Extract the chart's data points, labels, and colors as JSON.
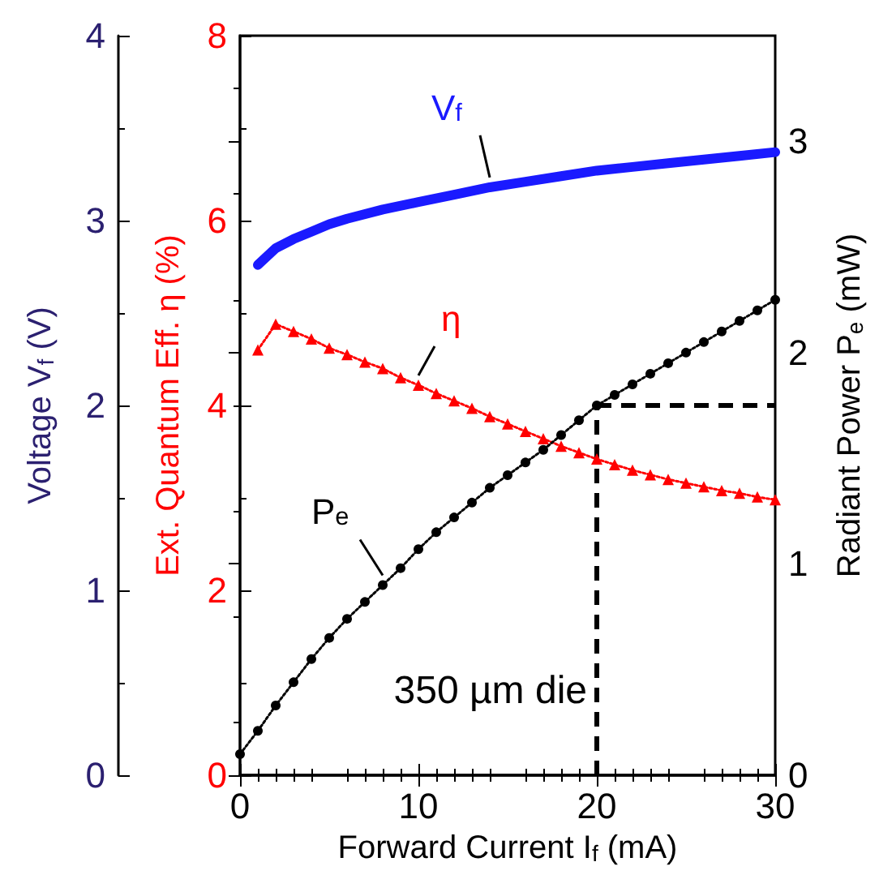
{
  "chart_data": {
    "type": "line",
    "xlabel": "Forward Current I$_{f}$ (mA)",
    "ylabel": "Ext. Quantum Eff. η (%)",
    "y2label": "Radiant Power P$_{e}$ (mW)",
    "y3label": "Voltage V$_{f}$ (V)",
    "xlim": [
      0,
      30
    ],
    "xticks": [
      0,
      10,
      20,
      30
    ],
    "ylim": [
      0,
      8
    ],
    "yticks": [
      0,
      2,
      4,
      6,
      8
    ],
    "y2lim": [
      0,
      3.5
    ],
    "y2ticks": [
      0,
      1,
      2,
      3
    ],
    "y3lim": [
      0,
      4
    ],
    "y3ticks": [
      0,
      1,
      2,
      3,
      4
    ],
    "grid": false,
    "series": [
      {
        "name": "V$_{f}$",
        "axis": "y3",
        "color": "#1a1aff",
        "marker": "none",
        "line_style": "solid",
        "x": [
          1,
          2,
          3,
          4,
          5,
          6,
          8,
          10,
          12,
          14,
          16,
          18,
          20,
          22,
          24,
          26,
          28,
          30
        ],
        "values": [
          2.76,
          2.85,
          2.9,
          2.94,
          2.98,
          3.01,
          3.06,
          3.1,
          3.14,
          3.18,
          3.21,
          3.24,
          3.27,
          3.29,
          3.31,
          3.33,
          3.35,
          3.37
        ]
      },
      {
        "name": "η",
        "color": "#ff0000",
        "marker": "triangle",
        "line_style": "dotted",
        "x": [
          1,
          2,
          3,
          4,
          5,
          6,
          7,
          8,
          9,
          10,
          11,
          12,
          13,
          14,
          15,
          16,
          17,
          18,
          19,
          20,
          21,
          22,
          23,
          24,
          25,
          26,
          27,
          28,
          29,
          30
        ],
        "values": [
          4.6,
          4.88,
          4.8,
          4.72,
          4.62,
          4.55,
          4.47,
          4.4,
          4.3,
          4.22,
          4.13,
          4.05,
          3.97,
          3.88,
          3.8,
          3.72,
          3.64,
          3.56,
          3.49,
          3.42,
          3.36,
          3.3,
          3.25,
          3.2,
          3.16,
          3.12,
          3.08,
          3.05,
          3.01,
          2.98
        ]
      },
      {
        "name": "P$_{e}$",
        "axis": "y2",
        "color": "#000000",
        "marker": "circle",
        "line_style": "dotted",
        "x": [
          0,
          1,
          2,
          3,
          4,
          5,
          6,
          7,
          8,
          9,
          10,
          11,
          12,
          13,
          14,
          15,
          16,
          17,
          18,
          19,
          20,
          21,
          22,
          23,
          24,
          25,
          26,
          27,
          28,
          29,
          30
        ],
        "values": [
          0.1,
          0.21,
          0.33,
          0.44,
          0.55,
          0.65,
          0.74,
          0.82,
          0.9,
          0.98,
          1.07,
          1.15,
          1.22,
          1.29,
          1.36,
          1.42,
          1.48,
          1.54,
          1.61,
          1.68,
          1.75,
          1.8,
          1.85,
          1.9,
          1.95,
          2.0,
          2.05,
          2.1,
          2.15,
          2.2,
          2.25
        ]
      }
    ],
    "ref_lines": [
      {
        "axis": "x",
        "value": 20,
        "color": "#000000",
        "line_style": "dashed"
      },
      {
        "axis": "y2",
        "value": 1.75,
        "color": "#000000",
        "line_style": "dashed"
      }
    ],
    "annotations": [
      "350 µm die"
    ]
  }
}
